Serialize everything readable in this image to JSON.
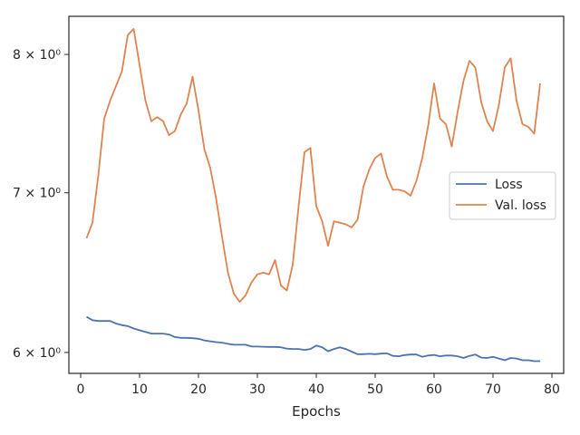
{
  "chart_data": {
    "type": "line",
    "title": "",
    "xlabel": "Epochs",
    "ylabel": "",
    "y_scale": "log",
    "xlim": [
      -2,
      82
    ],
    "ylim": [
      5.88,
      8.3
    ],
    "x_ticks": [
      0,
      10,
      20,
      30,
      40,
      50,
      60,
      70,
      80
    ],
    "x_tick_labels": [
      "0",
      "10",
      "20",
      "30",
      "40",
      "50",
      "60",
      "70",
      "80"
    ],
    "y_ticks": [
      6,
      7,
      8
    ],
    "y_tick_labels": [
      "6 × 10⁰",
      "7 × 10⁰",
      "8 × 10⁰"
    ],
    "grid": false,
    "legend_position": "center-right",
    "series": [
      {
        "name": "Loss",
        "color": "#4c72b0",
        "x": [
          1,
          2,
          3,
          4,
          5,
          6,
          7,
          8,
          9,
          10,
          11,
          12,
          13,
          14,
          15,
          16,
          17,
          18,
          19,
          20,
          21,
          22,
          23,
          24,
          25,
          26,
          27,
          28,
          29,
          30,
          31,
          32,
          33,
          34,
          35,
          36,
          37,
          38,
          39,
          40,
          41,
          42,
          43,
          44,
          45,
          46,
          47,
          48,
          49,
          50,
          51,
          52,
          53,
          54,
          55,
          56,
          57,
          58,
          59,
          60,
          61,
          62,
          63,
          64,
          65,
          66,
          67,
          68,
          69,
          70,
          71,
          72,
          73,
          74,
          75,
          76,
          77,
          78
        ],
        "values": [
          6.21,
          6.19,
          6.185,
          6.185,
          6.185,
          6.17,
          6.16,
          6.155,
          6.14,
          6.13,
          6.12,
          6.11,
          6.11,
          6.11,
          6.105,
          6.09,
          6.085,
          6.085,
          6.083,
          6.08,
          6.07,
          6.065,
          6.06,
          6.057,
          6.05,
          6.045,
          6.045,
          6.045,
          6.035,
          6.034,
          6.033,
          6.032,
          6.032,
          6.03,
          6.022,
          6.02,
          6.02,
          6.015,
          6.02,
          6.04,
          6.03,
          6.007,
          6.02,
          6.03,
          6.02,
          6.005,
          5.99,
          5.99,
          5.992,
          5.99,
          5.993,
          5.995,
          5.98,
          5.978,
          5.985,
          5.988,
          5.988,
          5.975,
          5.982,
          5.986,
          5.978,
          5.982,
          5.982,
          5.978,
          5.968,
          5.98,
          5.988,
          5.97,
          5.968,
          5.975,
          5.965,
          5.955,
          5.968,
          5.965,
          5.955,
          5.955,
          5.95,
          5.95
        ]
      },
      {
        "name": "Val. loss",
        "color": "#dd8452",
        "x": [
          1,
          2,
          3,
          4,
          5,
          6,
          7,
          8,
          9,
          10,
          11,
          12,
          13,
          14,
          15,
          16,
          17,
          18,
          19,
          20,
          21,
          22,
          23,
          24,
          25,
          26,
          27,
          28,
          29,
          30,
          31,
          32,
          33,
          34,
          35,
          36,
          37,
          38,
          39,
          40,
          41,
          42,
          43,
          44,
          45,
          46,
          47,
          48,
          49,
          50,
          51,
          52,
          53,
          54,
          55,
          56,
          57,
          58,
          59,
          60,
          61,
          62,
          63,
          64,
          65,
          66,
          67,
          68,
          69,
          70,
          71,
          72,
          73,
          74,
          75,
          76,
          77,
          78
        ],
        "values": [
          6.7,
          6.8,
          7.12,
          7.52,
          7.65,
          7.76,
          7.87,
          8.15,
          8.2,
          7.92,
          7.65,
          7.5,
          7.53,
          7.5,
          7.4,
          7.43,
          7.55,
          7.63,
          7.83,
          7.58,
          7.3,
          7.17,
          6.96,
          6.71,
          6.48,
          6.35,
          6.3,
          6.34,
          6.42,
          6.47,
          6.48,
          6.47,
          6.56,
          6.4,
          6.37,
          6.53,
          6.91,
          7.28,
          7.31,
          6.91,
          6.81,
          6.65,
          6.81,
          6.8,
          6.79,
          6.77,
          6.82,
          7.04,
          7.16,
          7.24,
          7.27,
          7.11,
          7.02,
          7.02,
          7.01,
          6.98,
          7.08,
          7.24,
          7.47,
          7.78,
          7.52,
          7.48,
          7.32,
          7.57,
          7.8,
          7.95,
          7.9,
          7.64,
          7.5,
          7.43,
          7.62,
          7.9,
          7.97,
          7.65,
          7.48,
          7.46,
          7.41,
          7.78
        ]
      }
    ]
  }
}
